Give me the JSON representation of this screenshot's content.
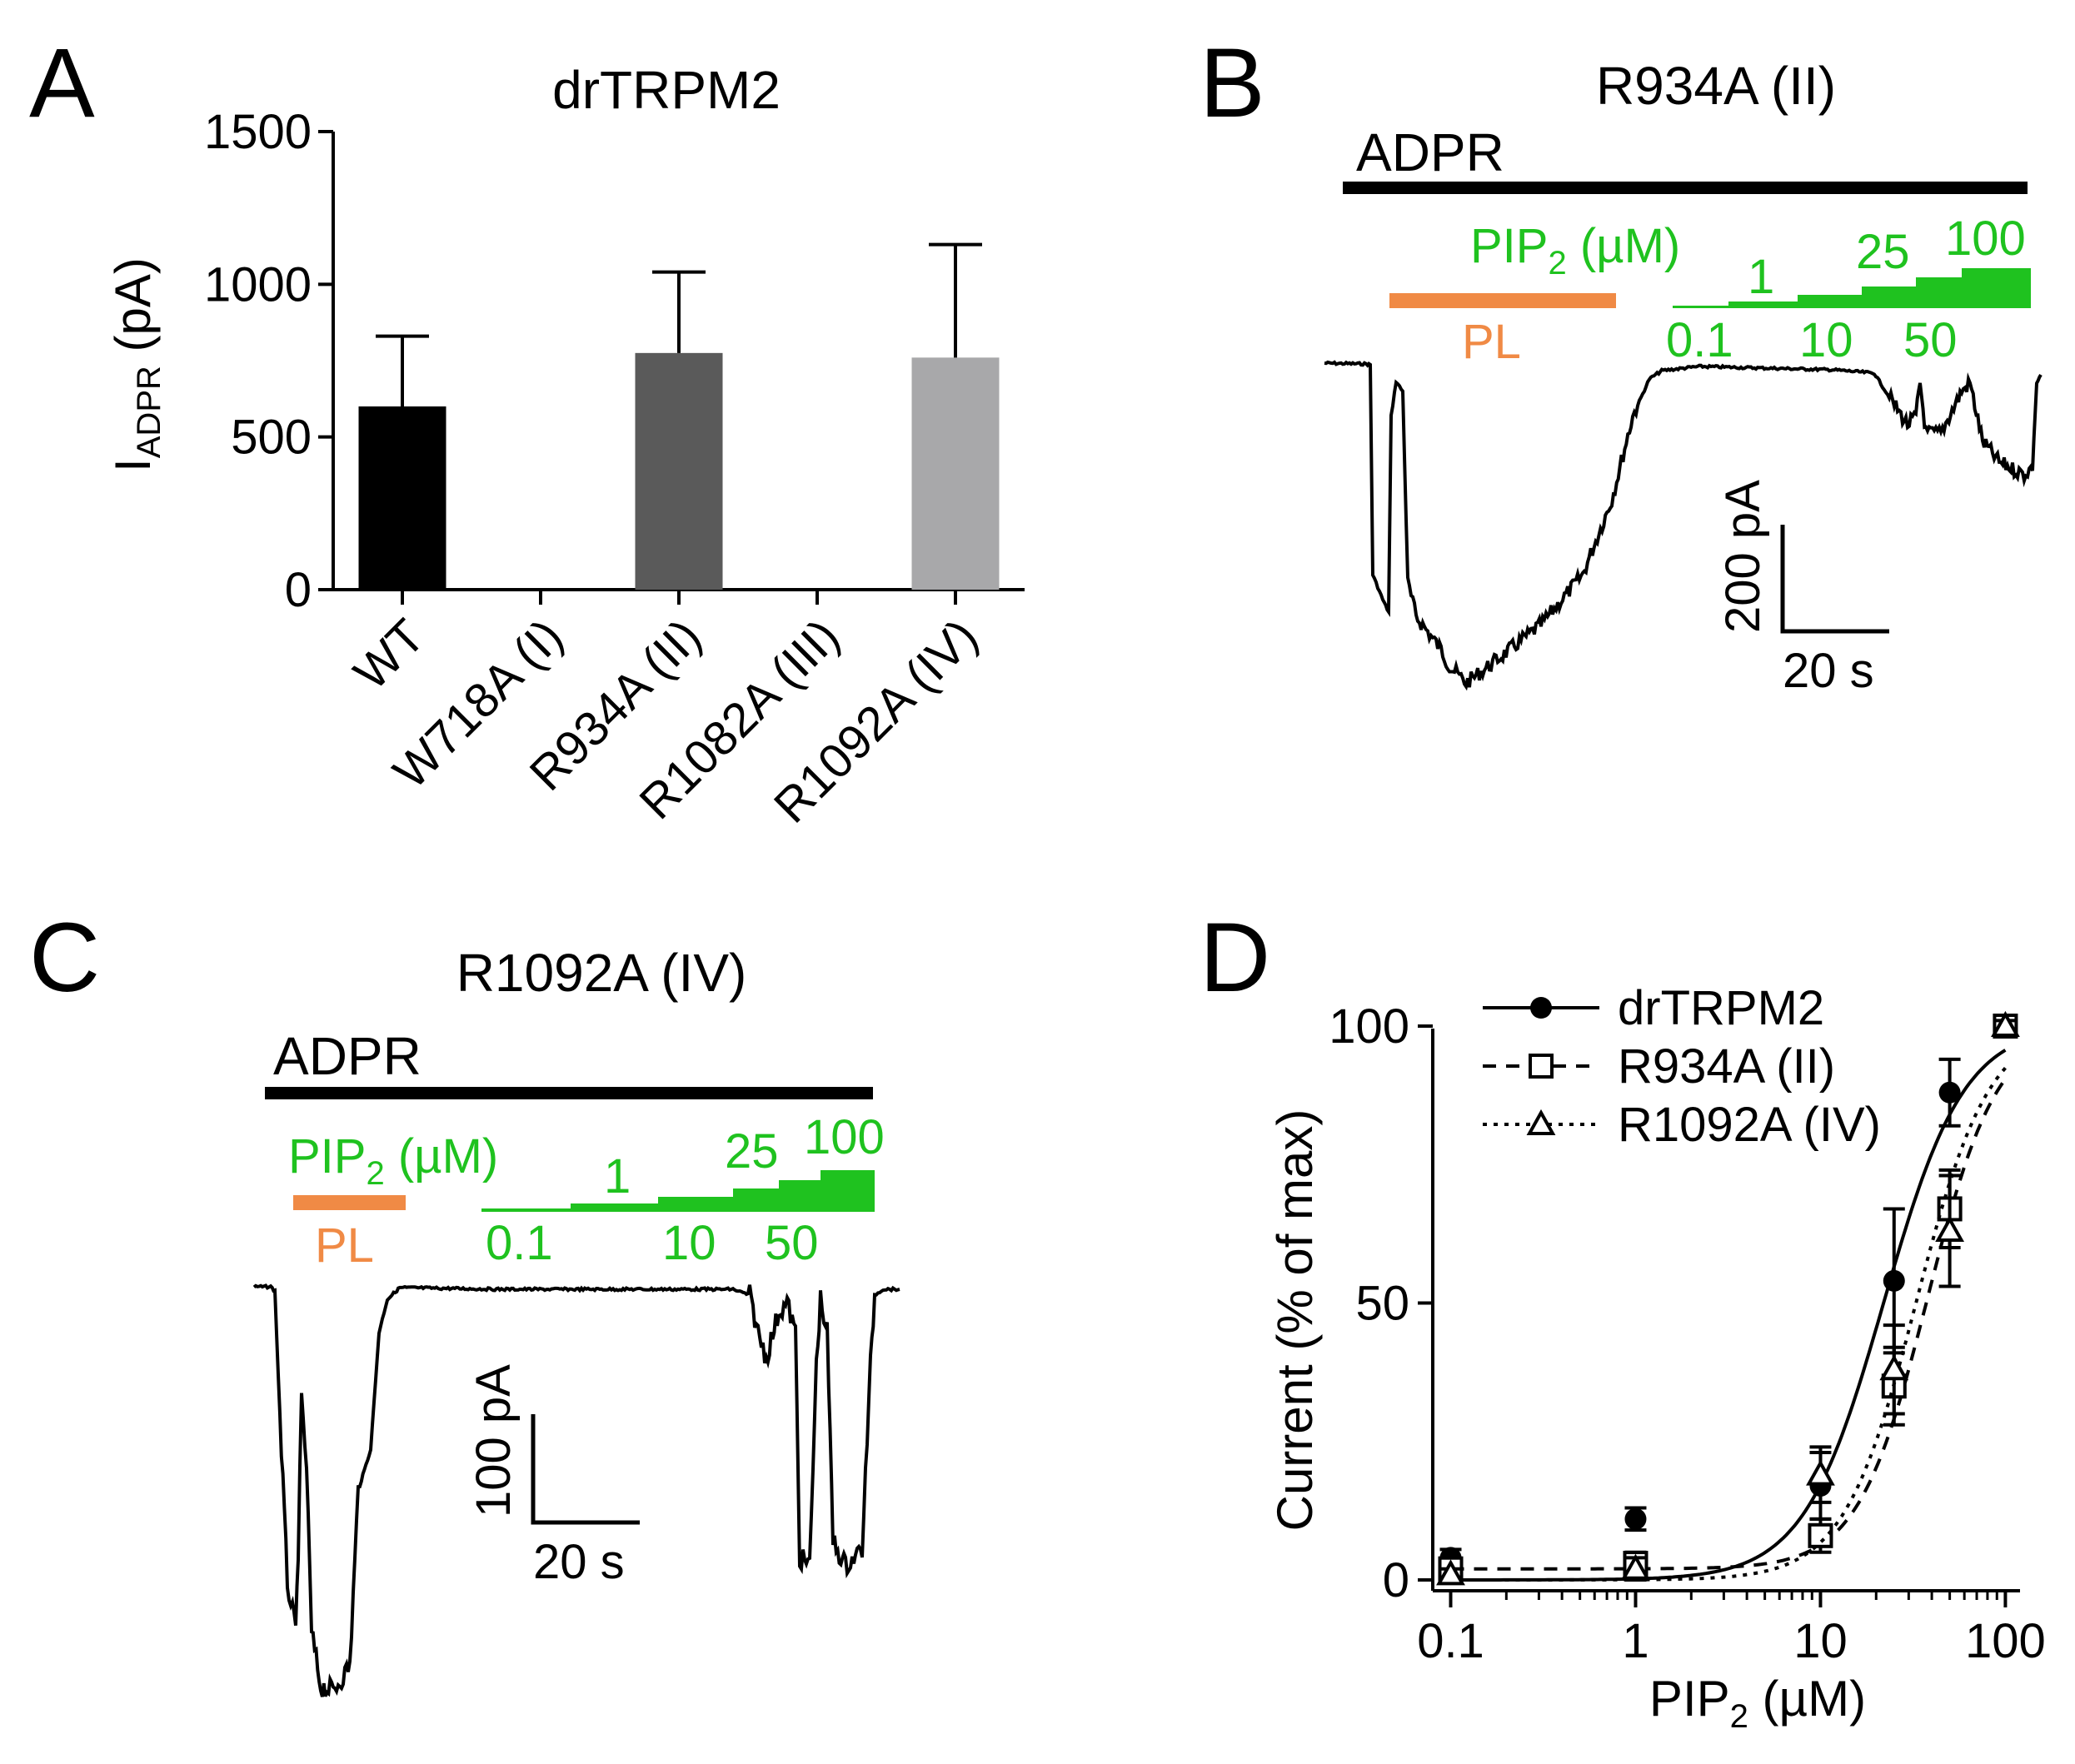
{
  "colors": {
    "black": "#000000",
    "bar_wt": "#000000",
    "bar_r934a": "#5a5a5a",
    "bar_r1092a": "#a8a8aa",
    "pip2_green": "#1fc21f",
    "pl_orange": "#f08a45"
  },
  "panels": {
    "a": {
      "letter": "A"
    },
    "b": {
      "letter": "B",
      "title": "R934A (II)",
      "adpr_label": "ADPR",
      "pip2_label": "PIP",
      "pip2_sub": "2",
      "pip2_unit": " (µM)",
      "pl_label": "PL",
      "conc_top": [
        "1",
        "25",
        "100"
      ],
      "conc_bottom": [
        "0.1",
        "10",
        "50"
      ],
      "scale_y": "200 pA",
      "scale_x": "20 s"
    },
    "c": {
      "letter": "C",
      "title": "R1092A (IV)",
      "adpr_label": "ADPR",
      "pip2_label": "PIP",
      "pip2_sub": "2",
      "pip2_unit": " (µM)",
      "pl_label": "PL",
      "conc_top": [
        "1",
        "25",
        "100"
      ],
      "conc_bottom": [
        "0.1",
        "10",
        "50"
      ],
      "scale_y": "100 pA",
      "scale_x": "20 s"
    },
    "d": {
      "letter": "D"
    }
  },
  "chart_data": [
    {
      "type": "bar",
      "title": "drTRPM2",
      "ylabel": "I",
      "ylabel_sub": "ADPR",
      "ylabel_unit": " (pA)",
      "ylim": [
        0,
        1500
      ],
      "yticks": [
        "0",
        "500",
        "1000",
        "1500"
      ],
      "categories": [
        "WT",
        "W718A (I)",
        "R934A (II)",
        "R1082A (III)",
        "R1092A (IV)"
      ],
      "values": [
        600,
        0,
        775,
        0,
        760
      ],
      "errors": [
        230,
        0,
        265,
        0,
        370
      ]
    },
    {
      "type": "scatter",
      "xscale": "log",
      "xlim": [
        0.08,
        120
      ],
      "ylim": [
        0,
        100
      ],
      "xticks": [
        "0.1",
        "1",
        "10",
        "100"
      ],
      "yticks": [
        "0",
        "50",
        "100"
      ],
      "xlabel": "PIP",
      "xlabel_sub": "2",
      "xlabel_unit": " (µM)",
      "ylabel": "Current (% of max)",
      "legend": [
        "drTRPM2",
        "R934A (II)",
        "R1092A (IV)"
      ],
      "series": [
        {
          "name": "drTRPM2",
          "marker": "circle",
          "x": [
            0.1,
            1,
            10,
            25,
            50,
            100
          ],
          "y": [
            4,
            11,
            17,
            54,
            88,
            100
          ],
          "err": [
            1.5,
            2,
            6,
            13,
            6,
            1
          ],
          "ec50": 22,
          "hill": 2.0,
          "bottom": 0,
          "top": 100.3
        },
        {
          "name": "R934A (II)",
          "marker": "square",
          "x": [
            0.1,
            1,
            10,
            25,
            50,
            100
          ],
          "y": [
            2,
            3,
            8,
            35,
            67,
            100
          ],
          "err": [
            1,
            2,
            3,
            7,
            7,
            1
          ],
          "ec50": 38,
          "hill": 2.3,
          "bottom": 2,
          "top": 100
        },
        {
          "name": "R1092A (IV)",
          "marker": "triangle",
          "x": [
            0.1,
            1,
            10,
            25,
            50,
            100
          ],
          "y": [
            1,
            2,
            19,
            38,
            63,
            100
          ],
          "err": [
            1,
            2,
            5,
            8,
            10,
            1
          ],
          "ec50": 33,
          "hill": 2.2,
          "bottom": 0,
          "top": 100.5
        }
      ]
    }
  ]
}
